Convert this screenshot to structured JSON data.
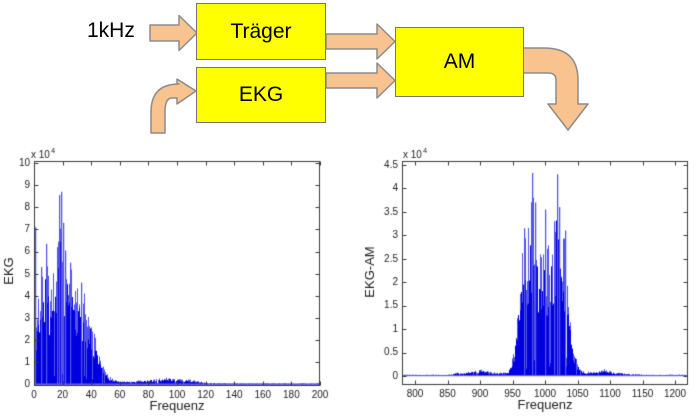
{
  "diagram": {
    "input_label": "1kHz",
    "blocks": [
      {
        "id": "traeger",
        "label": "Träger"
      },
      {
        "id": "ekg",
        "label": "EKG"
      },
      {
        "id": "am",
        "label": "AM"
      }
    ],
    "colors": {
      "box_fill": "#FFFF00",
      "box_border": "#777777",
      "arrow_fill": "#F9C38F",
      "arrow_border": "#8C8C8C"
    }
  },
  "chart_data": [
    {
      "type": "line",
      "subtype": "magnitude-spectrum",
      "title": "",
      "xlabel": "Frequenz",
      "ylabel": "EKG",
      "scale_label_prefix": "x 10",
      "scale_label_exponent": "4",
      "xlim": [
        0,
        200
      ],
      "ylim": [
        0,
        10
      ],
      "xticks": [
        0,
        20,
        40,
        60,
        80,
        100,
        120,
        140,
        160,
        180,
        200
      ],
      "yticks": [
        0,
        1,
        2,
        3,
        4,
        5,
        6,
        7,
        8,
        9,
        10
      ],
      "grid": false,
      "frame": true,
      "line_color": "#0000DE",
      "line_color_light": "#5353EA",
      "baseline_color": "#5E5EE8",
      "axis_color": "#3a3a3a",
      "seed": 11,
      "envelope": [
        [
          0,
          0.5
        ],
        [
          0.5,
          7.1
        ],
        [
          1.5,
          3.2
        ],
        [
          3,
          4.6
        ],
        [
          5,
          5.3
        ],
        [
          7,
          5.2
        ],
        [
          8.5,
          6.35
        ],
        [
          10,
          5.4
        ],
        [
          12,
          4.9
        ],
        [
          14,
          5.1
        ],
        [
          16,
          6.2
        ],
        [
          17.5,
          8.55
        ],
        [
          18.5,
          8.7
        ],
        [
          19.5,
          7.6
        ],
        [
          20.5,
          7.3
        ],
        [
          22,
          6.05
        ],
        [
          24,
          5.6
        ],
        [
          25,
          5.5
        ],
        [
          27,
          5.1
        ],
        [
          29,
          4.9
        ],
        [
          31,
          4.7
        ],
        [
          33,
          4.6
        ],
        [
          35,
          4.2
        ],
        [
          37,
          3.8
        ],
        [
          39,
          3.3
        ],
        [
          41,
          2.9
        ],
        [
          43,
          2.3
        ],
        [
          45,
          1.7
        ],
        [
          47,
          1.1
        ],
        [
          49,
          0.75
        ],
        [
          51,
          0.5
        ],
        [
          54,
          0.32
        ],
        [
          58,
          0.2
        ],
        [
          62,
          0.15
        ],
        [
          66,
          0.14
        ],
        [
          70,
          0.17
        ],
        [
          75,
          0.2
        ],
        [
          80,
          0.24
        ],
        [
          85,
          0.26
        ],
        [
          90,
          0.3
        ],
        [
          95,
          0.32
        ],
        [
          100,
          0.3
        ],
        [
          104,
          0.26
        ],
        [
          108,
          0.24
        ],
        [
          112,
          0.2
        ],
        [
          116,
          0.14
        ],
        [
          120,
          0.1
        ],
        [
          126,
          0.07
        ],
        [
          135,
          0.06
        ],
        [
          150,
          0.05
        ],
        [
          175,
          0.05
        ],
        [
          200,
          0.05
        ]
      ],
      "peaks": [
        [
          0.7,
          7.1
        ],
        [
          5,
          5.3
        ],
        [
          8.5,
          6.35
        ],
        [
          16,
          6.2
        ],
        [
          17.5,
          8.55
        ],
        [
          18.6,
          8.7
        ],
        [
          20.3,
          7.3
        ],
        [
          22,
          6.05
        ],
        [
          25,
          5.5
        ],
        [
          33,
          4.6
        ]
      ]
    },
    {
      "type": "line",
      "subtype": "magnitude-spectrum",
      "title": "",
      "xlabel": "Frequenz",
      "ylabel": "EKG-AM",
      "scale_label_prefix": "x 10",
      "scale_label_exponent": "4",
      "xlim": [
        780,
        1220
      ],
      "ylim": [
        0,
        4.5
      ],
      "xticks": [
        800,
        850,
        900,
        950,
        1000,
        1050,
        1100,
        1150,
        1200
      ],
      "yticks": [
        0,
        0.5,
        1,
        1.5,
        2,
        2.5,
        3,
        3.5,
        4,
        4.5
      ],
      "grid": false,
      "frame": true,
      "line_color": "#0000DE",
      "line_color_light": "#5353EA",
      "baseline_color": "#5E5EE8",
      "axis_color": "#3a3a3a",
      "seed": 23,
      "envelope": [
        [
          780,
          0.03
        ],
        [
          850,
          0.03
        ],
        [
          858,
          0.05
        ],
        [
          865,
          0.08
        ],
        [
          872,
          0.06
        ],
        [
          880,
          0.09
        ],
        [
          888,
          0.12
        ],
        [
          895,
          0.11
        ],
        [
          902,
          0.14
        ],
        [
          908,
          0.13
        ],
        [
          915,
          0.1
        ],
        [
          922,
          0.08
        ],
        [
          930,
          0.07
        ],
        [
          938,
          0.09
        ],
        [
          944,
          0.12
        ],
        [
          948,
          0.25
        ],
        [
          952,
          0.5
        ],
        [
          956,
          1.1
        ],
        [
          960,
          1.9
        ],
        [
          964,
          2.6
        ],
        [
          968,
          3.15
        ],
        [
          972,
          3.0
        ],
        [
          976,
          3.4
        ],
        [
          980,
          4.33
        ],
        [
          983,
          3.7
        ],
        [
          986,
          3.1
        ],
        [
          990,
          2.9
        ],
        [
          994,
          2.7
        ],
        [
          998,
          3.0
        ],
        [
          1000,
          3.55
        ],
        [
          1003,
          2.9
        ],
        [
          1006,
          2.8
        ],
        [
          1010,
          3.0
        ],
        [
          1014,
          3.3
        ],
        [
          1018,
          4.3
        ],
        [
          1021,
          3.6
        ],
        [
          1025,
          3.1
        ],
        [
          1029,
          3.1
        ],
        [
          1033,
          2.6
        ],
        [
          1036,
          2.0
        ],
        [
          1040,
          1.3
        ],
        [
          1044,
          0.75
        ],
        [
          1048,
          0.4
        ],
        [
          1052,
          0.22
        ],
        [
          1056,
          0.14
        ],
        [
          1062,
          0.1
        ],
        [
          1070,
          0.09
        ],
        [
          1078,
          0.1
        ],
        [
          1085,
          0.13
        ],
        [
          1090,
          0.16
        ],
        [
          1095,
          0.13
        ],
        [
          1100,
          0.11
        ],
        [
          1108,
          0.08
        ],
        [
          1115,
          0.07
        ],
        [
          1125,
          0.05
        ],
        [
          1140,
          0.04
        ],
        [
          1160,
          0.03
        ],
        [
          1220,
          0.03
        ]
      ],
      "peaks": [
        [
          968,
          3.15
        ],
        [
          980,
          4.33
        ],
        [
          984,
          3.7
        ],
        [
          1000,
          3.55
        ],
        [
          1014,
          3.3
        ],
        [
          1018,
          4.3
        ],
        [
          1022,
          3.6
        ],
        [
          1030,
          3.1
        ]
      ]
    }
  ]
}
